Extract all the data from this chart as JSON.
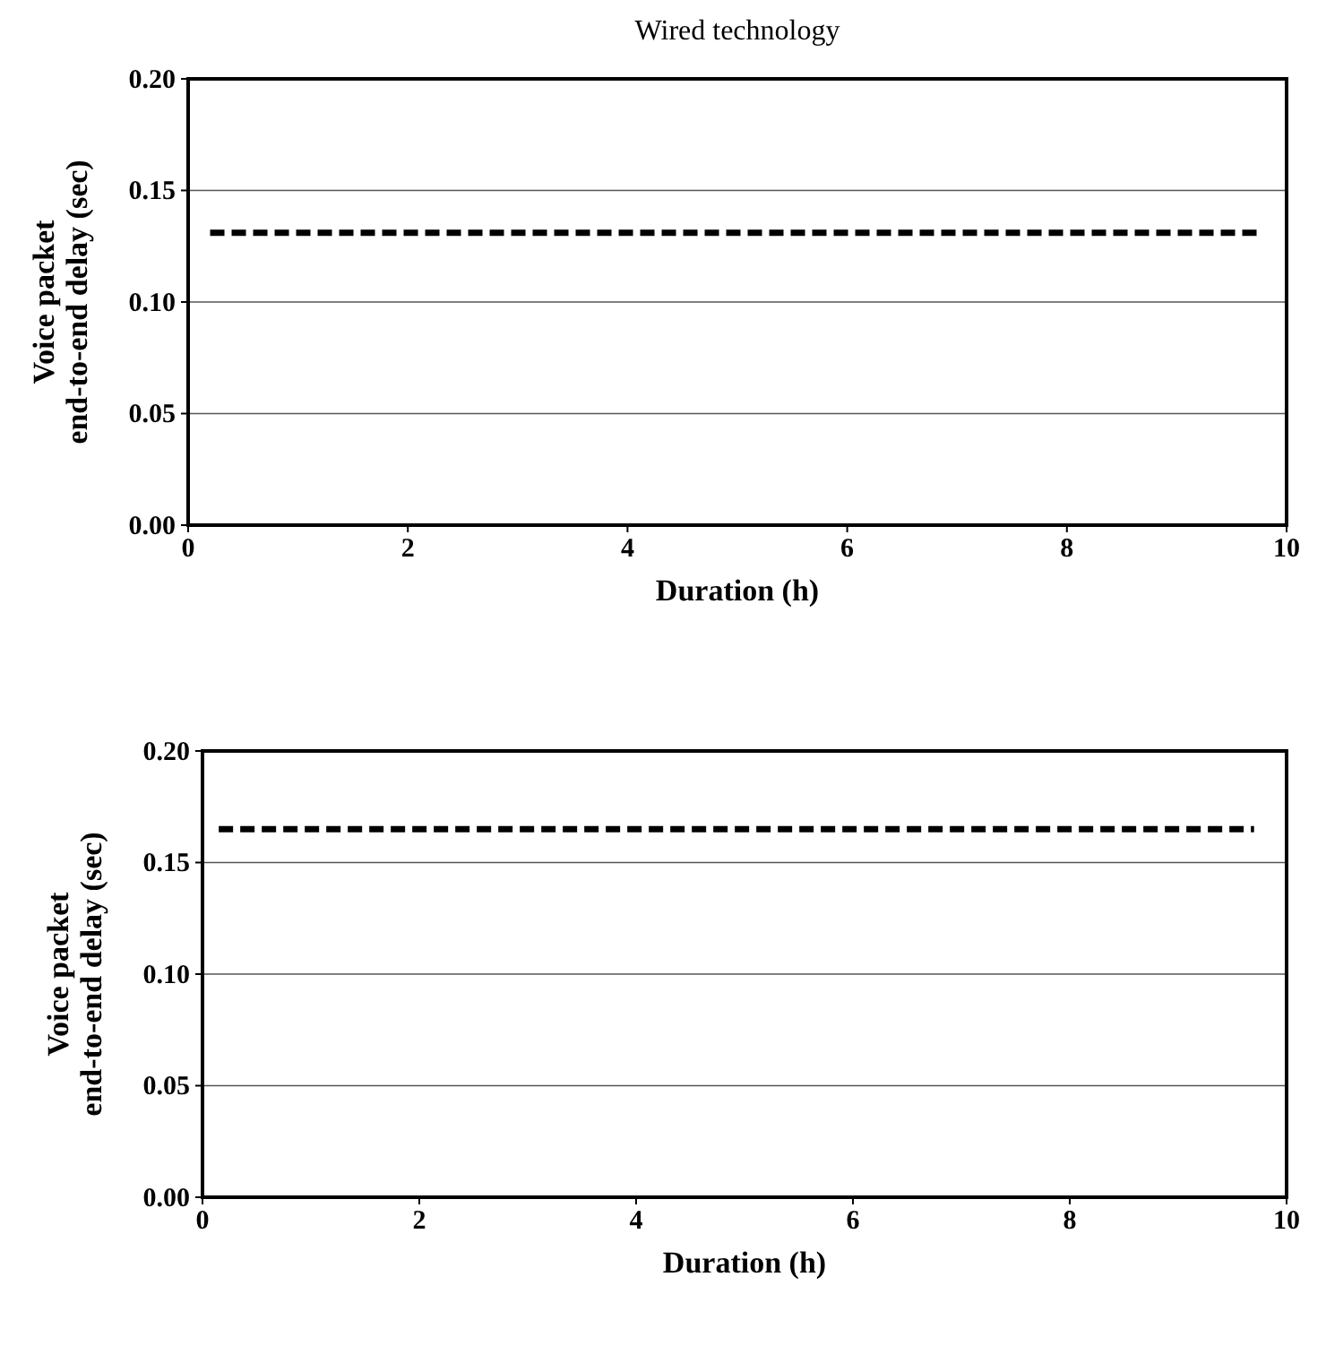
{
  "chart_data": [
    {
      "type": "line",
      "title": "Wired technology",
      "xlabel": "Duration (h)",
      "ylabel": "Voice packet\nend-to-end delay (sec)",
      "x": [
        0.2,
        9.75
      ],
      "series": [
        {
          "color": "#000000",
          "values": [
            0.131,
            0.131
          ]
        }
      ],
      "xlim": [
        0,
        10
      ],
      "xticks": [
        0,
        2,
        4,
        6,
        8,
        10
      ],
      "ylim": [
        0,
        0.2
      ],
      "yticks": [
        {
          "value": 0,
          "label": "0.00"
        },
        {
          "value": 0.05,
          "label": "0.05"
        },
        {
          "value": 0.1,
          "label": "0.10"
        },
        {
          "value": 0.15,
          "label": "0.15"
        },
        {
          "value": 0.2,
          "label": "0.20"
        }
      ],
      "grid": "y",
      "line_style": "dashed",
      "marker": "none"
    },
    {
      "type": "line",
      "xlabel": "Duration (h)",
      "ylabel": "Voice packet\nend-to-end delay (sec)",
      "x": [
        0.15,
        9.7
      ],
      "series": [
        {
          "color": "#000000",
          "values": [
            0.165,
            0.165
          ]
        }
      ],
      "xlim": [
        0,
        10
      ],
      "xticks": [
        0,
        2,
        4,
        6,
        8,
        10
      ],
      "ylim": [
        0,
        0.2
      ],
      "yticks": [
        {
          "value": 0,
          "label": "0.00"
        },
        {
          "value": 0.05,
          "label": "0.05"
        },
        {
          "value": 0.1,
          "label": "0.10"
        },
        {
          "value": 0.15,
          "label": "0.15"
        },
        {
          "value": 0.2,
          "label": "0.20"
        }
      ],
      "grid": "y",
      "line_style": "dashed",
      "marker": "none"
    }
  ]
}
